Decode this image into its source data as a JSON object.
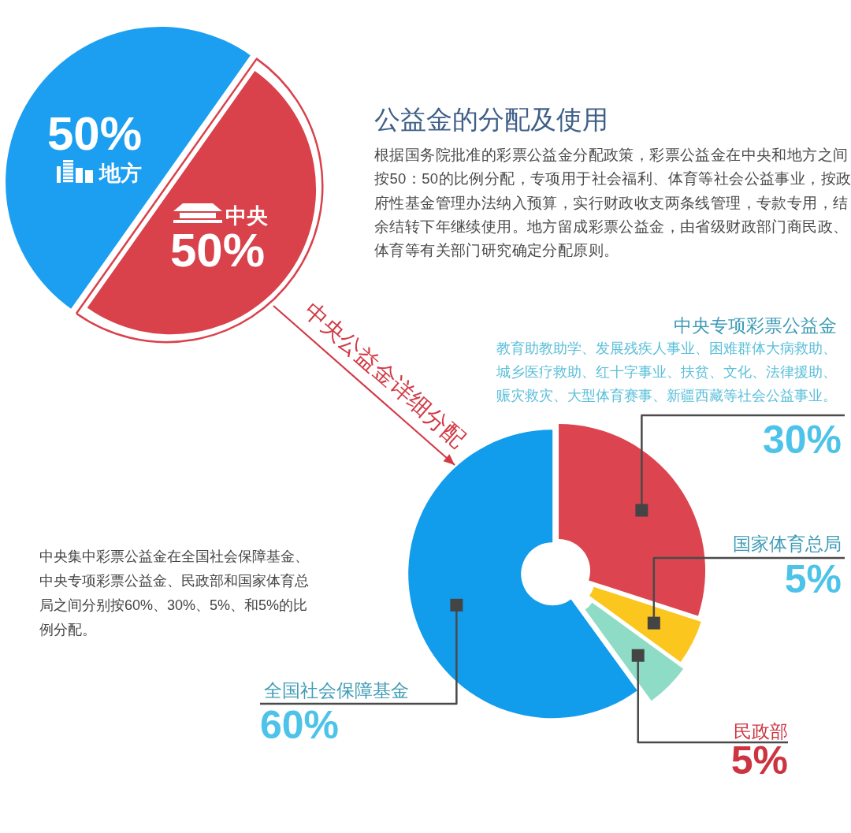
{
  "chart_data": [
    {
      "type": "pie",
      "title": "公益金的分配及使用",
      "categories": [
        "地方",
        "中央"
      ],
      "values": [
        50,
        50
      ],
      "colors": [
        "#1c9ff0",
        "#d9414b"
      ],
      "value_labels": [
        "50%",
        "50%"
      ],
      "annotations": [
        "根据国务院批准的彩票公益金分配政策，彩票公益金在中央和地方之间按50：50的比例分配，专项用于社会福利、体育等社会公益事业，按政府性基金管理办法纳入预算，实行财政收支两条线管理，专款专用，结余结转下年继续使用。地方留成彩票公益金，由省级财政部门商民政、体育等有关部门研究确定分配原则。"
      ]
    },
    {
      "type": "donut",
      "title": "中央公益金详细分配",
      "categories": [
        "中央专项彩票公益金",
        "国家体育总局",
        "民政部",
        "全国社会保障基金"
      ],
      "values": [
        30,
        5,
        5,
        60
      ],
      "colors": [
        "#dc4550",
        "#fbc61d",
        "#8edcc5",
        "#129cec"
      ],
      "value_labels": [
        "30%",
        "5%",
        "5%",
        "60%"
      ],
      "annotations": [
        "教育助教助学、发展残疾人事业、困难群体大病救助、城乡医疗救助、红十字事业、扶贫、文化、法律援助、赈灾救灾、大型体育赛事、新疆西藏等社会公益事业。",
        "中央集中彩票公益金在全国社会保障基金、中央专项彩票公益金、民政部和国家体育总局之间分别按60%、30%、5%、和5%的比例分配。"
      ]
    }
  ]
}
